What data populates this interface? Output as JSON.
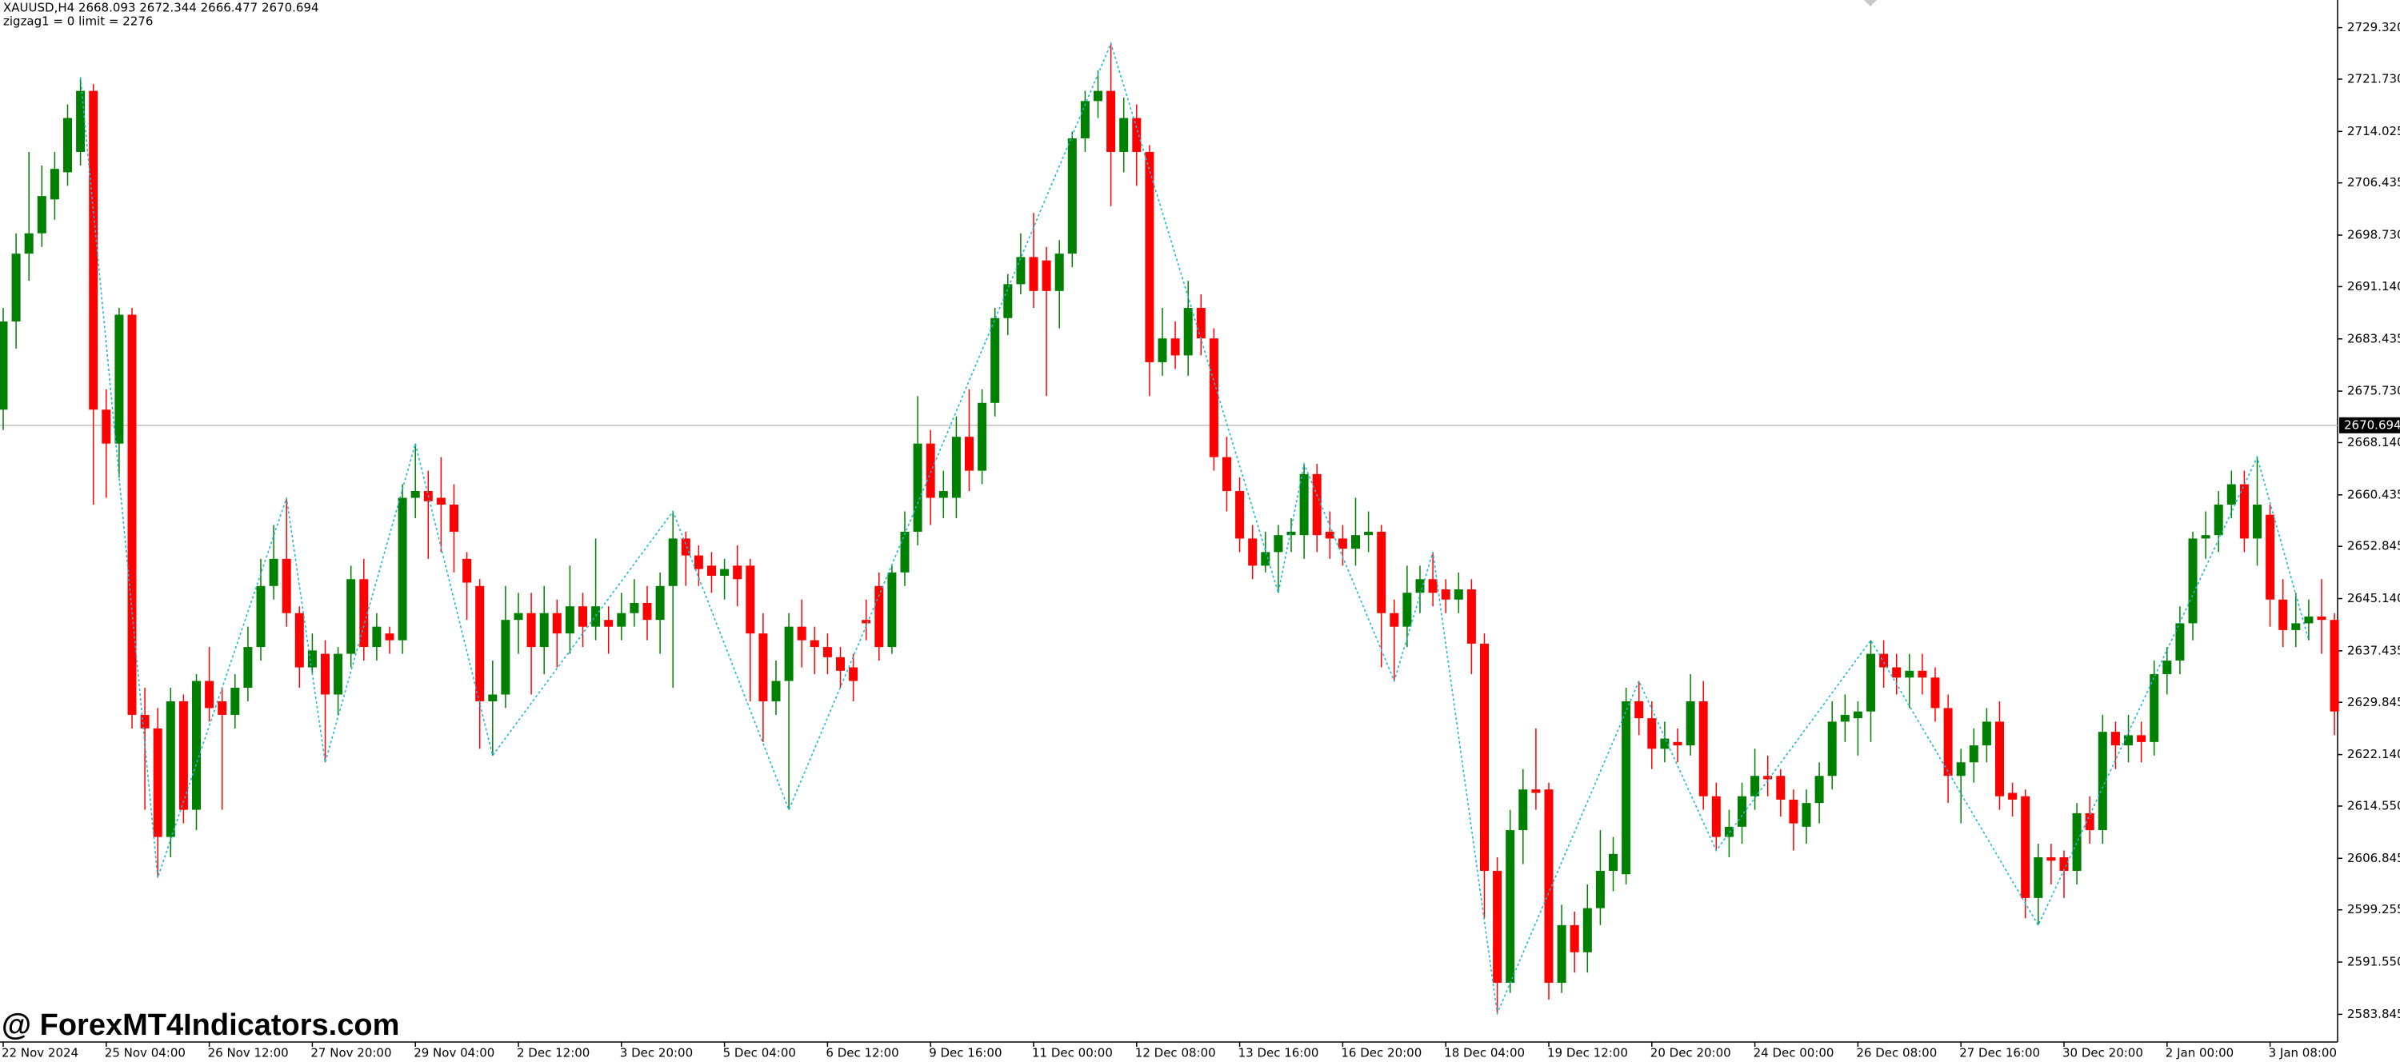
{
  "chart_data": {
    "type": "candlestick",
    "title": "XAUUSD,H4  2668.093 2672.344 2666.477 2670.694",
    "subtitle": "zigzag1 = 0 limit = 2276",
    "watermark": "@ ForexMT4Indicators.com",
    "up_color": "#008000",
    "down_color": "#ff0000",
    "ylim": [
      2580.0,
      2733.4
    ],
    "yticks": [
      2583.845,
      {
        "value": 2591.55,
        "label": "2591.550"
      },
      2599.255,
      2606.845,
      {
        "value": 2614.55,
        "label": "2614.550"
      },
      {
        "value": 2622.14,
        "label": "2622.140"
      },
      2629.845,
      2637.435,
      {
        "value": 2645.14,
        "label": "2645.140"
      },
      2652.845,
      2660.435,
      {
        "value": 2668.14,
        "label": "2668.140"
      },
      {
        "value": 2675.73,
        "label": "2675.730"
      },
      2683.435,
      {
        "value": 2691.14,
        "label": "2691.140"
      },
      {
        "value": 2698.73,
        "label": "2698.730"
      },
      2706.435,
      2714.025,
      {
        "value": 2721.73,
        "label": "2721.730"
      },
      {
        "value": 2729.32,
        "label": "2729.320"
      }
    ],
    "last_price": 2670.694,
    "categories": [
      "22 Nov 2024",
      null,
      null,
      null,
      null,
      null,
      null,
      null,
      "25 Nov 04:00",
      null,
      null,
      null,
      null,
      null,
      null,
      null,
      "26 Nov 12:00",
      null,
      null,
      null,
      null,
      null,
      null,
      null,
      "27 Nov 20:00",
      null,
      null,
      null,
      null,
      null,
      null,
      null,
      "29 Nov 04:00",
      null,
      null,
      null,
      null,
      null,
      null,
      null,
      "2 Dec 12:00",
      null,
      null,
      null,
      null,
      null,
      null,
      null,
      "3 Dec 20:00",
      null,
      null,
      null,
      null,
      null,
      null,
      null,
      "5 Dec 04:00",
      null,
      null,
      null,
      null,
      null,
      null,
      null,
      "6 Dec 12:00",
      null,
      null,
      null,
      null,
      null,
      null,
      null,
      "9 Dec 16:00",
      null,
      null,
      null,
      null,
      null,
      null,
      null,
      "11 Dec 00:00",
      null,
      null,
      null,
      null,
      null,
      null,
      null,
      "12 Dec 08:00",
      null,
      null,
      null,
      null,
      null,
      null,
      null,
      "13 Dec 16:00",
      null,
      null,
      null,
      null,
      null,
      null,
      null,
      "16 Dec 20:00",
      null,
      null,
      null,
      null,
      null,
      null,
      null,
      "18 Dec 04:00",
      null,
      null,
      null,
      null,
      null,
      null,
      null,
      "19 Dec 12:00",
      null,
      null,
      null,
      null,
      null,
      null,
      null,
      "20 Dec 20:00",
      null,
      null,
      null,
      null,
      null,
      null,
      null,
      "24 Dec 00:00",
      null,
      null,
      null,
      null,
      null,
      null,
      null,
      "26 Dec 08:00",
      null,
      null,
      null,
      null,
      null,
      null,
      null,
      "27 Dec 16:00",
      null,
      null,
      null,
      null,
      null,
      null,
      null,
      "30 Dec 20:00",
      null,
      null,
      null,
      null,
      null,
      null,
      null,
      "2 Jan 00:00",
      null,
      null,
      null,
      null,
      null,
      null,
      null,
      "3 Jan 08:00",
      null,
      null,
      null,
      null,
      null
    ],
    "open": [
      2673,
      2686,
      2696,
      2699,
      2704,
      2708,
      2711,
      2720,
      2673,
      2668,
      2687,
      2628,
      2626,
      2610,
      2630,
      2614,
      2633,
      2630,
      2628,
      2632,
      2638,
      2647,
      2651,
      2643,
      2635,
      2637,
      2631,
      2637,
      2648,
      2638,
      2640,
      2639,
      2660,
      2661,
      2660,
      2659,
      2651,
      2647,
      2630,
      2631,
      2642,
      2643,
      2638,
      2643,
      2640,
      2644,
      2641,
      2642,
      2641,
      2643,
      2644.5,
      2642,
      2647,
      2654,
      2651.5,
      2650,
      2648.5,
      2650,
      2650,
      2640,
      2630,
      2633,
      2641,
      2639,
      2638,
      2636.5,
      2635,
      2642,
      2647,
      2638,
      2649,
      2655,
      2668,
      2660,
      2660,
      2669,
      2664,
      2674,
      2686.5,
      2691.5,
      2695.5,
      2695,
      2690.5,
      2696,
      2713,
      2718.5,
      2720,
      2711,
      2716,
      2711,
      2680,
      2683.5,
      2681,
      2688,
      2683.5,
      2666,
      2661,
      2654,
      2650,
      2652,
      2654.5,
      2654.5,
      2663.5,
      2655,
      2654,
      2652.5,
      2654.5,
      2655,
      2643,
      2641,
      2646,
      2648,
      2646.5,
      2645,
      2646.5,
      2638.5,
      2605,
      2588.5,
      2611,
      2617,
      2617,
      2588.5,
      2597,
      2593,
      2599.5,
      2605,
      2604.5,
      2630,
      2627.5,
      2623,
      2624,
      2623.5,
      2630,
      2616,
      2610,
      2611.5,
      2616,
      2619,
      2619,
      2615.5,
      2611.5,
      2615,
      2619,
      2627,
      2627.5,
      2628.5,
      2637,
      2635,
      2633.5,
      2634.5,
      2633.5,
      2629,
      2619,
      2621,
      2623.5,
      2627,
      2616.5,
      2616,
      2601,
      2607,
      2607,
      2605,
      2613.5,
      2611,
      2625.5,
      2623.5,
      2625,
      2624,
      2634,
      2636,
      2641.5,
      2654,
      2654.5,
      2659,
      2662,
      2654,
      2657.5,
      2645,
      2640.5,
      2641.5,
      2642.5,
      2642
    ],
    "high": [
      2688,
      2699,
      2711,
      2709,
      2711,
      2718,
      2722,
      2721,
      2676,
      2688,
      2688,
      2632,
      2629,
      2632,
      2631,
      2634,
      2638,
      2632,
      2634,
      2641,
      2651,
      2656,
      2660,
      2644,
      2640,
      2639,
      2638,
      2650,
      2651,
      2643,
      2641,
      2662,
      2668,
      2664,
      2666,
      2662,
      2652,
      2648,
      2636,
      2647,
      2646,
      2646,
      2647,
      2645,
      2650,
      2646,
      2654,
      2644,
      2646,
      2648,
      2647,
      2649,
      2658,
      2655,
      2653,
      2652,
      2651,
      2653,
      2651,
      2643,
      2636,
      2643,
      2645,
      2641,
      2640,
      2638,
      2637,
      2645,
      2649,
      2650,
      2658,
      2675,
      2670,
      2664,
      2672,
      2676,
      2676,
      2688,
      2693,
      2699,
      2702,
      2697,
      2698,
      2714,
      2720,
      2723,
      2727,
      2719,
      2718,
      2712,
      2688,
      2686,
      2692,
      2690,
      2685,
      2669,
      2663,
      2656,
      2655,
      2656,
      2657,
      2665,
      2665,
      2658,
      2656,
      2660,
      2658,
      2656,
      2645,
      2650,
      2650,
      2652,
      2648,
      2649,
      2648,
      2640,
      2607,
      2614,
      2620,
      2626,
      2618,
      2600,
      2599,
      2603,
      2611,
      2610,
      2632,
      2633,
      2630,
      2627,
      2626,
      2634,
      2633,
      2618,
      2614,
      2618,
      2623,
      2622,
      2620,
      2617,
      2617,
      2621,
      2630,
      2631,
      2630,
      2639,
      2639,
      2637,
      2637,
      2637,
      2635,
      2631,
      2623,
      2626,
      2629,
      2630,
      2618,
      2617,
      2609,
      2609,
      2608,
      2615,
      2616,
      2628,
      2627,
      2628,
      2627,
      2636,
      2638,
      2644,
      2655,
      2658,
      2661,
      2664,
      2664,
      2666,
      2659,
      2648,
      2646,
      2645,
      2648,
      2643
    ],
    "low": [
      2670,
      2682,
      2692,
      2697,
      2701,
      2706,
      2709,
      2659,
      2660,
      2663,
      2626,
      2614,
      2604,
      2607,
      2612,
      2611,
      2627,
      2614,
      2626,
      2630,
      2636,
      2645,
      2641,
      2632,
      2634,
      2621,
      2628,
      2635,
      2636,
      2636,
      2637,
      2637,
      2657,
      2651,
      2652,
      2649,
      2642,
      2623,
      2622,
      2629,
      2637,
      2631,
      2634,
      2635,
      2637,
      2638,
      2639,
      2637,
      2639,
      2641,
      2639,
      2637,
      2632,
      2647,
      2647,
      2646,
      2645,
      2644,
      2630,
      2624,
      2628,
      2614,
      2635,
      2634,
      2634,
      2632,
      2630,
      2639,
      2636,
      2637,
      2647,
      2653,
      2656,
      2657,
      2657,
      2661,
      2662,
      2672,
      2684,
      2690,
      2688,
      2675,
      2685,
      2694,
      2711,
      2716,
      2703,
      2708,
      2706,
      2675,
      2678,
      2679,
      2678,
      2681,
      2664,
      2658,
      2652,
      2648,
      2649,
      2646,
      2652,
      2651,
      2652,
      2651,
      2650,
      2650,
      2652,
      2635,
      2633,
      2638,
      2643,
      2644,
      2643,
      2643,
      2634,
      2598,
      2584,
      2587,
      2606,
      2614,
      2586,
      2587,
      2590,
      2590,
      2597,
      2602,
      2603,
      2625,
      2620,
      2621,
      2621,
      2622,
      2614,
      2608,
      2607,
      2609,
      2614,
      2616,
      2613,
      2608,
      2609,
      2612,
      2617,
      2624,
      2622,
      2624,
      2632,
      2631,
      2629,
      2631,
      2627,
      2615,
      2612,
      2618,
      2621,
      2614,
      2613,
      2598,
      2597,
      2603,
      2601,
      2603,
      2609,
      2609,
      2620,
      2621,
      2621,
      2622,
      2631,
      2634,
      2639,
      2651,
      2652,
      2657,
      2652,
      2650,
      2641,
      2638,
      2638,
      2639,
      2637,
      2625
    ],
    "close": [
      2686,
      2696,
      2699,
      2704.5,
      2708.5,
      2716,
      2720,
      2673,
      2668,
      2687,
      2628,
      2626,
      2610,
      2630,
      2614,
      2633,
      2629,
      2628,
      2632,
      2638,
      2647,
      2651,
      2643,
      2635,
      2637.5,
      2631,
      2637,
      2648,
      2638,
      2641,
      2639,
      2660,
      2661,
      2659.5,
      2659,
      2655,
      2647.5,
      2630,
      2631,
      2642,
      2643,
      2638,
      2643,
      2640,
      2644,
      2641,
      2644,
      2641,
      2643,
      2644.5,
      2642,
      2647,
      2654,
      2651.5,
      2649.5,
      2648.5,
      2649.5,
      2648,
      2640,
      2630,
      2633,
      2641,
      2639,
      2638,
      2636.5,
      2634.5,
      2633,
      2641.5,
      2638,
      2649,
      2655,
      2668,
      2660,
      2661,
      2669,
      2664,
      2674,
      2686.5,
      2691.5,
      2695.5,
      2690.5,
      2690.5,
      2696,
      2713,
      2718.5,
      2720,
      2711,
      2716,
      2711,
      2680,
      2683.5,
      2681,
      2688,
      2683.5,
      2666,
      2661,
      2654,
      2650,
      2652,
      2654.5,
      2655,
      2663.5,
      2654.5,
      2654,
      2652.5,
      2654.5,
      2655,
      2643,
      2641,
      2646,
      2648,
      2646,
      2645,
      2646.5,
      2638.5,
      2605,
      2588.5,
      2611,
      2617,
      2616.5,
      2588.5,
      2597,
      2593,
      2599.5,
      2605,
      2607.5,
      2630,
      2627.5,
      2623,
      2624.5,
      2623.5,
      2630,
      2616,
      2610,
      2611.5,
      2616,
      2619,
      2618.5,
      2615.5,
      2612,
      2615,
      2619,
      2627,
      2628,
      2628.5,
      2637,
      2635,
      2633.5,
      2634.5,
      2633.5,
      2629,
      2619,
      2621,
      2623.5,
      2627,
      2616,
      2615.5,
      2601,
      2607,
      2606.5,
      2605,
      2613.5,
      2611,
      2625.5,
      2623.5,
      2625,
      2624,
      2634,
      2636,
      2641.5,
      2654,
      2654.5,
      2659,
      2662,
      2654,
      2659,
      2645,
      2640.5,
      2641.5,
      2642.5,
      2642,
      2628.5
    ],
    "zigzag": {
      "color": "#20b8d8",
      "x": [
        6,
        12,
        22,
        25,
        32,
        38,
        52,
        61,
        86,
        99,
        101,
        108,
        111,
        116,
        127,
        133,
        145,
        158,
        175,
        179
      ],
      "values": [
        2722,
        2604,
        2660,
        2621,
        2668,
        2622,
        2658,
        2614,
        2727,
        2646,
        2665,
        2633,
        2652,
        2584,
        2633,
        2608,
        2639,
        2597,
        2666,
        2639
      ]
    }
  }
}
